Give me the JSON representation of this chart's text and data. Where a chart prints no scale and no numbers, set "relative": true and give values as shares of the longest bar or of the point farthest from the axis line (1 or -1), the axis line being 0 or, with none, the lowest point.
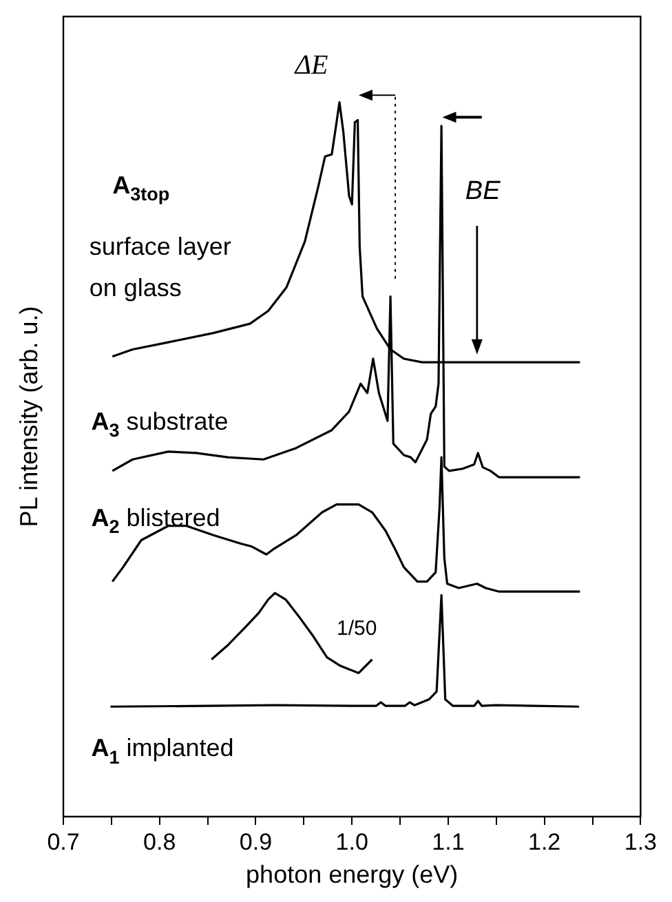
{
  "chart_data": {
    "type": "line",
    "xlabel": "photon energy (eV)",
    "ylabel": "PL intensity (arb. u.)",
    "relative": true,
    "xlim": [
      0.7,
      1.3
    ],
    "xticks": [
      0.7,
      {
        "value": 0.75,
        "label": null
      },
      0.8,
      {
        "value": 0.85,
        "label": null
      },
      0.9,
      {
        "value": 0.95,
        "label": null
      },
      {
        "value": 1,
        "label": "1.0"
      },
      {
        "value": 1.05,
        "label": null
      },
      1.1,
      {
        "value": 1.15,
        "label": null
      },
      1.2,
      {
        "value": 1.25,
        "label": null
      },
      1.3
    ],
    "legend": false,
    "grid": false,
    "marker": "none",
    "line_style": "solid",
    "annotations": [
      "ΔE",
      "BE",
      "1/50"
    ],
    "ref_lines": [
      {
        "axis": "x",
        "value": 1.045,
        "line_style": "dotted"
      }
    ],
    "series": [
      {
        "name": "A$_{1}$ implanted",
        "color": "#000000",
        "x": [
          0.749,
          0.85,
          0.92,
          1.0,
          1.025,
          1.03,
          1.035,
          1.055,
          1.06,
          1.065,
          1.08,
          1.088,
          1.093,
          1.097,
          1.105,
          1.127,
          1.131,
          1.135,
          1.15,
          1.236
        ],
        "values": [
          0.154,
          0.155,
          0.156,
          0.155,
          0.155,
          0.16,
          0.155,
          0.155,
          0.16,
          0.156,
          0.164,
          0.175,
          0.31,
          0.164,
          0.155,
          0.155,
          0.162,
          0.155,
          0.156,
          0.154
        ]
      },
      {
        "color": "#000000",
        "x": [
          0.854,
          0.871,
          0.889,
          0.903,
          0.913,
          0.92,
          0.931,
          0.946,
          0.96,
          0.974,
          0.988,
          1.007,
          1.021
        ],
        "values": [
          0.22,
          0.24,
          0.265,
          0.285,
          0.304,
          0.313,
          0.304,
          0.278,
          0.252,
          0.223,
          0.211,
          0.201,
          0.22
        ]
      },
      {
        "name": "A$_{2}$ blistered",
        "color": "#000000",
        "x": [
          0.751,
          0.762,
          0.781,
          0.809,
          0.828,
          0.856,
          0.885,
          0.896,
          0.911,
          0.918,
          0.942,
          0.969,
          0.984,
          1.007,
          1.021,
          1.035,
          1.045,
          1.054,
          1.068,
          1.078,
          1.087,
          1.091,
          1.093,
          1.096,
          1.099,
          1.111,
          1.13,
          1.139,
          1.153,
          1.237
        ],
        "values": [
          0.329,
          0.349,
          0.387,
          0.407,
          0.407,
          0.394,
          0.382,
          0.378,
          0.367,
          0.374,
          0.394,
          0.426,
          0.437,
          0.437,
          0.426,
          0.4,
          0.374,
          0.349,
          0.329,
          0.329,
          0.342,
          0.432,
          0.503,
          0.362,
          0.326,
          0.32,
          0.326,
          0.32,
          0.315,
          0.315
        ]
      },
      {
        "name": "A$_{3}$ substrate",
        "color": "#000000",
        "x": [
          0.751,
          0.772,
          0.809,
          0.838,
          0.871,
          0.908,
          0.942,
          0.979,
          0.997,
          1.005,
          1.009,
          1.016,
          1.022,
          1.028,
          1.037,
          1.04,
          1.043,
          1.054,
          1.061,
          1.066,
          1.078,
          1.082,
          1.087,
          1.09,
          1.093,
          1.096,
          1.101,
          1.115,
          1.127,
          1.131,
          1.136,
          1.144,
          1.153,
          1.237
        ],
        "values": [
          0.484,
          0.5,
          0.511,
          0.509,
          0.503,
          0.5,
          0.516,
          0.541,
          0.567,
          0.593,
          0.606,
          0.593,
          0.641,
          0.593,
          0.554,
          0.728,
          0.522,
          0.506,
          0.503,
          0.496,
          0.528,
          0.564,
          0.574,
          0.606,
          0.967,
          0.49,
          0.484,
          0.487,
          0.493,
          0.509,
          0.489,
          0.484,
          0.475,
          0.475
        ]
      },
      {
        "name": "A$_{3top}$ surface layer on glass",
        "color": "#000000",
        "x": [
          0.751,
          0.772,
          0.809,
          0.856,
          0.894,
          0.913,
          0.932,
          0.951,
          0.965,
          0.972,
          0.979,
          0.984,
          0.987,
          0.991,
          0.997,
          1.0,
          1.003,
          1.006,
          1.008,
          1.011,
          1.026,
          1.04,
          1.054,
          1.073,
          1.092,
          1.237
        ],
        "values": [
          0.644,
          0.654,
          0.664,
          0.677,
          0.69,
          0.708,
          0.741,
          0.805,
          0.882,
          0.924,
          0.927,
          0.972,
          1.0,
          0.959,
          0.869,
          0.857,
          0.972,
          0.975,
          0.798,
          0.728,
          0.683,
          0.654,
          0.641,
          0.636,
          0.636,
          0.636
        ]
      }
    ]
  }
}
